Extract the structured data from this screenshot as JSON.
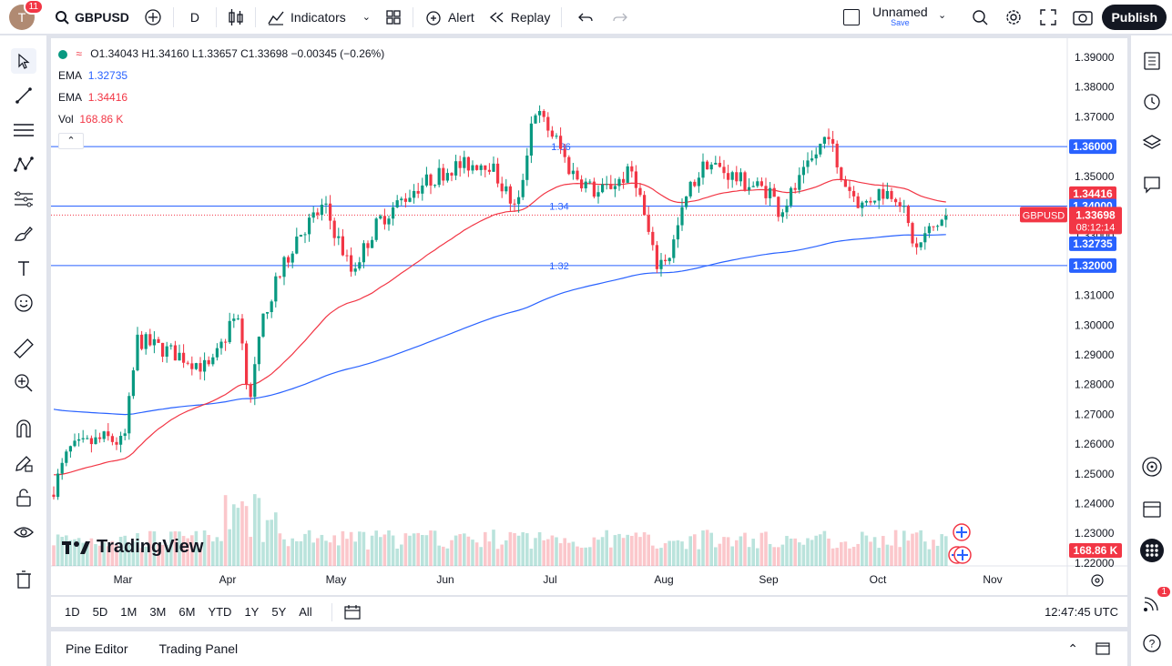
{
  "topbar": {
    "avatar_initial": "T",
    "notif_count": "11",
    "symbol": "GBPUSD",
    "interval": "D",
    "indicators": "Indicators",
    "alert": "Alert",
    "replay": "Replay",
    "layout_name": "Unnamed",
    "layout_sub": "Save",
    "publish": "Publish"
  },
  "legend": {
    "ohlc": "O1.34043  H1.34160  L1.33657  C1.33698  −0.00345 (−0.26%)",
    "ema1_label": "EMA",
    "ema1_value": "1.32735",
    "ema2_label": "EMA",
    "ema2_value": "1.34416",
    "vol_label": "Vol",
    "vol_value": "168.86 K"
  },
  "price_axis": [
    "1.39000",
    "1.38000",
    "1.37000",
    "1.36000",
    "1.35000",
    "1.34000",
    "1.33000",
    "1.32000",
    "1.31000",
    "1.30000",
    "1.29000",
    "1.28000",
    "1.27000",
    "1.26000",
    "1.25000",
    "1.24000",
    "1.23000",
    "1.22000"
  ],
  "time_axis": [
    "Mar",
    "Apr",
    "May",
    "Jun",
    "Jul",
    "Aug",
    "Sep",
    "Oct",
    "Nov"
  ],
  "hlines": [
    {
      "price": 1.36,
      "label": "1.36",
      "badge": "1.36000"
    },
    {
      "price": 1.34,
      "label": "1.34",
      "badge": "1.34000"
    },
    {
      "price": 1.32,
      "label": "1.32",
      "badge": "1.32000"
    }
  ],
  "badges": {
    "ema_red": "1.34416",
    "symbol_tag": "GBPUSD",
    "last_price": "1.33698",
    "countdown": "08:12:14",
    "ema_blue": "1.32735",
    "volume": "168.86 K"
  },
  "logo": "TradingView",
  "colors": {
    "up": "#089981",
    "down": "#f23645",
    "ema_slow": "#2962ff",
    "ema_fast": "#f23645",
    "hline": "#2962ff"
  },
  "ranges": [
    "1D",
    "5D",
    "1M",
    "3M",
    "6M",
    "YTD",
    "1Y",
    "5Y",
    "All"
  ],
  "clock": "12:47:45 UTC",
  "panel": {
    "pine": "Pine Editor",
    "trading": "Trading Panel"
  },
  "right_notif": "1"
}
